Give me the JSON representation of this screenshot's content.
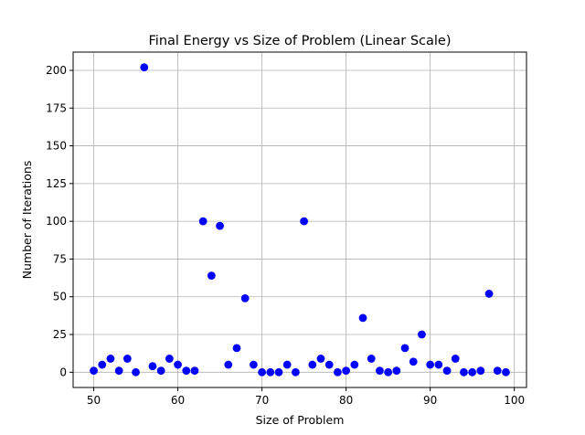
{
  "chart_data": {
    "type": "scatter",
    "title": "Final Energy vs Size of Problem (Linear Scale)",
    "xlabel": "Size of Problem",
    "ylabel": "Number of Iterations",
    "xlim": [
      47.55,
      101.45
    ],
    "ylim": [
      -10.1,
      212.1
    ],
    "xticks": [
      50,
      60,
      70,
      80,
      90,
      100
    ],
    "yticks": [
      0,
      25,
      50,
      75,
      100,
      125,
      150,
      175,
      200
    ],
    "grid": true,
    "marker_color": "#0000ff",
    "points": [
      {
        "x": 50,
        "y": 1
      },
      {
        "x": 51,
        "y": 5
      },
      {
        "x": 52,
        "y": 9
      },
      {
        "x": 53,
        "y": 1
      },
      {
        "x": 54,
        "y": 9
      },
      {
        "x": 55,
        "y": 0
      },
      {
        "x": 56,
        "y": 202
      },
      {
        "x": 57,
        "y": 4
      },
      {
        "x": 58,
        "y": 1
      },
      {
        "x": 59,
        "y": 9
      },
      {
        "x": 60,
        "y": 5
      },
      {
        "x": 61,
        "y": 1
      },
      {
        "x": 62,
        "y": 1
      },
      {
        "x": 63,
        "y": 100
      },
      {
        "x": 64,
        "y": 64
      },
      {
        "x": 65,
        "y": 97
      },
      {
        "x": 66,
        "y": 5
      },
      {
        "x": 67,
        "y": 16
      },
      {
        "x": 68,
        "y": 49
      },
      {
        "x": 69,
        "y": 5
      },
      {
        "x": 70,
        "y": 0
      },
      {
        "x": 71,
        "y": 0
      },
      {
        "x": 72,
        "y": 0
      },
      {
        "x": 73,
        "y": 5
      },
      {
        "x": 74,
        "y": 0
      },
      {
        "x": 75,
        "y": 100
      },
      {
        "x": 76,
        "y": 5
      },
      {
        "x": 77,
        "y": 9
      },
      {
        "x": 78,
        "y": 5
      },
      {
        "x": 79,
        "y": 0
      },
      {
        "x": 80,
        "y": 1
      },
      {
        "x": 81,
        "y": 5
      },
      {
        "x": 82,
        "y": 36
      },
      {
        "x": 83,
        "y": 9
      },
      {
        "x": 84,
        "y": 1
      },
      {
        "x": 85,
        "y": 0
      },
      {
        "x": 86,
        "y": 1
      },
      {
        "x": 87,
        "y": 16
      },
      {
        "x": 88,
        "y": 7
      },
      {
        "x": 89,
        "y": 25
      },
      {
        "x": 90,
        "y": 5
      },
      {
        "x": 91,
        "y": 5
      },
      {
        "x": 92,
        "y": 1
      },
      {
        "x": 93,
        "y": 9
      },
      {
        "x": 94,
        "y": 0
      },
      {
        "x": 95,
        "y": 0
      },
      {
        "x": 96,
        "y": 1
      },
      {
        "x": 97,
        "y": 52
      },
      {
        "x": 98,
        "y": 1
      },
      {
        "x": 99,
        "y": 0
      }
    ]
  }
}
